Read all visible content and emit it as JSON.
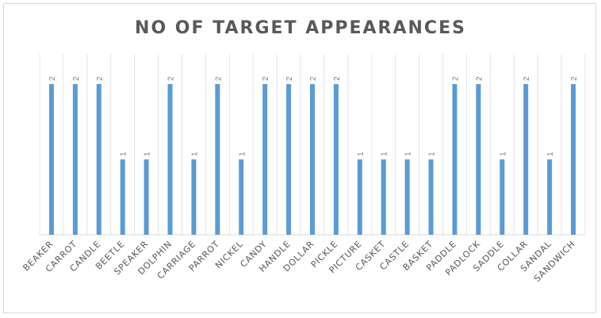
{
  "chart_data": {
    "type": "bar",
    "title": "NO OF TARGET APPEARANCES",
    "categories": [
      "BEAKER",
      "CARROT",
      "CANDLE",
      "BEETLE",
      "SPEAKER",
      "DOLPHIN",
      "CARRIAGE",
      "PARROT",
      "NICKEL",
      "CANDY",
      "HANDLE",
      "DOLLAR",
      "PICKLE",
      "PICTURE",
      "CASKET",
      "CASTLE",
      "BASKET",
      "PADDLE",
      "PADLOCK",
      "SADDLE",
      "COLLAR",
      "SANDAL",
      "SANDWICH"
    ],
    "values": [
      2,
      2,
      2,
      1,
      1,
      2,
      1,
      2,
      1,
      2,
      2,
      2,
      2,
      1,
      1,
      1,
      1,
      2,
      2,
      1,
      2,
      1,
      2
    ],
    "ylim": [
      0,
      2.4
    ],
    "grid": "vertical category gridlines",
    "legend": "none",
    "bar_color": "#5b9bd5",
    "label_color": "#7f7f7f"
  }
}
